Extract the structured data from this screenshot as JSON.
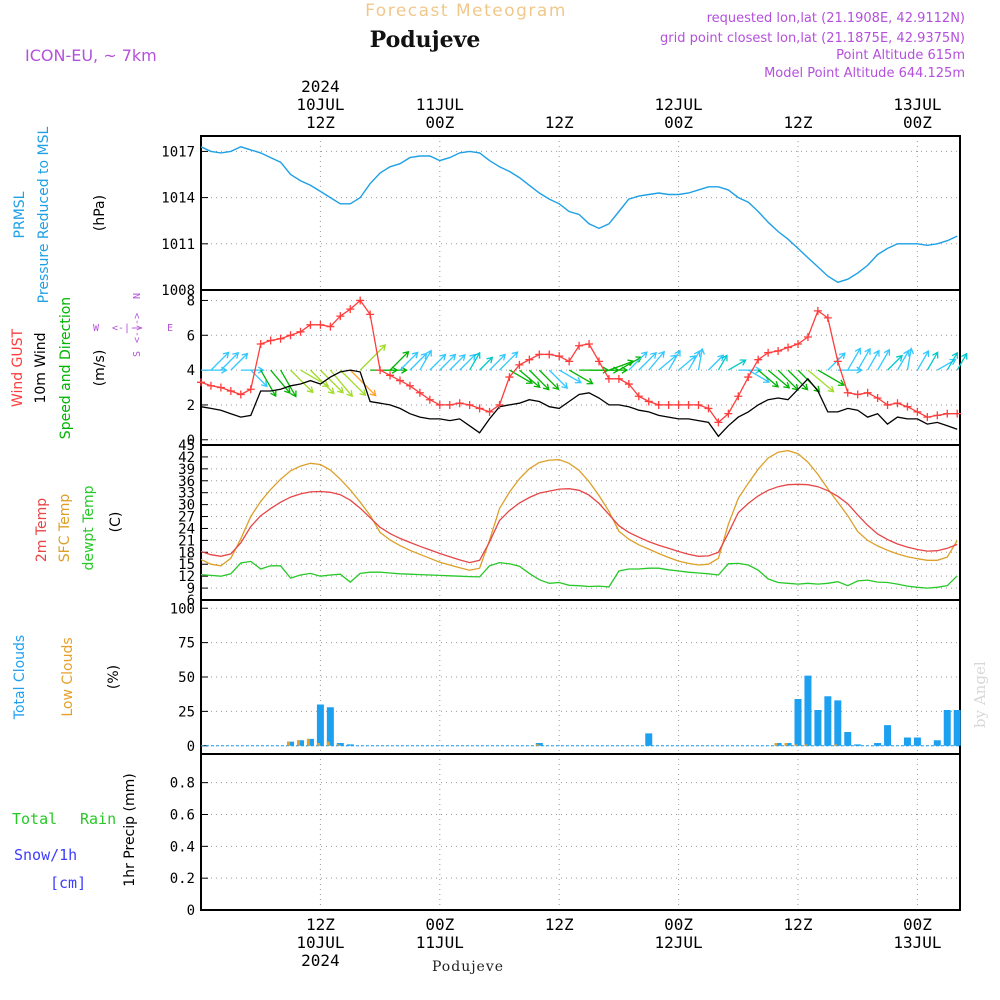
{
  "header": {
    "product_title": "Forecast Meteogram",
    "location": "Podujeve",
    "model": "ICON-EU, ~ 7km",
    "requested": "requested lon,lat (21.1908E, 42.9112N)",
    "grid_point": "grid point closest lon,lat (21.1875E, 42.9375N)",
    "point_altitude": "Point Altitude 615m",
    "model_altitude": "Model Point Altitude 644.125m"
  },
  "footer": {
    "location": "Podujeve",
    "credit": "by Angel"
  },
  "top_time_labels": [
    {
      "hour": 12,
      "lines": [
        "2024",
        "10JUL",
        "12Z"
      ]
    },
    {
      "hour": 24,
      "lines": [
        "11JUL",
        "00Z"
      ]
    },
    {
      "hour": 36,
      "lines": [
        "12Z"
      ]
    },
    {
      "hour": 48,
      "lines": [
        "12JUL",
        "00Z"
      ]
    },
    {
      "hour": 60,
      "lines": [
        "12Z"
      ]
    },
    {
      "hour": 72,
      "lines": [
        "13JUL",
        "00Z"
      ]
    }
  ],
  "bottom_time_labels": [
    {
      "hour": 12,
      "lines": [
        "12Z",
        "10JUL",
        "2024"
      ]
    },
    {
      "hour": 24,
      "lines": [
        "00Z",
        "11JUL"
      ]
    },
    {
      "hour": 36,
      "lines": [
        "12Z"
      ]
    },
    {
      "hour": 48,
      "lines": [
        "00Z",
        "12JUL"
      ]
    },
    {
      "hour": 60,
      "lines": [
        "12Z"
      ]
    },
    {
      "hour": 72,
      "lines": [
        "00Z",
        "13JUL"
      ]
    }
  ],
  "colors": {
    "pressure": "#1ea0e6",
    "gust": "#ff3c3c",
    "wind": "#000000",
    "wind_dir_label": "#00b400",
    "compass": "#b450dc",
    "temp2m": "#e64646",
    "sfc_temp": "#dca028",
    "dewpoint": "#28c828",
    "total_clouds": "#1ea0f0",
    "low_clouds": "#e6a028",
    "rain": "#28c828",
    "snow": "#3c3cff",
    "header_purple": "#b450dc",
    "header_title": "#f0c88c"
  },
  "chart_data": [
    {
      "type": "line",
      "panel": "pressure",
      "axis_labels": [
        "PRMSL",
        "Pressure Reduced to MSL"
      ],
      "unit": "(hPa)",
      "ylim": [
        1008,
        1018
      ],
      "yticks": [
        1008,
        1011,
        1014,
        1017
      ],
      "x": [
        0,
        1,
        2,
        3,
        4,
        5,
        6,
        7,
        8,
        9,
        10,
        11,
        12,
        13,
        14,
        15,
        16,
        17,
        18,
        19,
        20,
        21,
        22,
        23,
        24,
        25,
        26,
        27,
        28,
        29,
        30,
        31,
        32,
        33,
        34,
        35,
        36,
        37,
        38,
        39,
        40,
        41,
        42,
        43,
        44,
        45,
        46,
        47,
        48,
        49,
        50,
        51,
        52,
        53,
        54,
        55,
        56,
        57,
        58,
        59,
        60,
        61,
        62,
        63,
        64,
        65,
        66,
        67,
        68,
        69,
        70,
        71,
        72,
        73,
        74,
        75,
        76
      ],
      "series": [
        {
          "values": [
            1017.3,
            1017.0,
            1016.9,
            1017.0,
            1017.3,
            1017.1,
            1016.9,
            1016.6,
            1016.3,
            1015.5,
            1015.1,
            1014.8,
            1014.4,
            1014.0,
            1013.6,
            1013.6,
            1014.0,
            1014.9,
            1015.6,
            1016.0,
            1016.2,
            1016.6,
            1016.7,
            1016.7,
            1016.4,
            1016.6,
            1016.9,
            1017.0,
            1016.9,
            1016.4,
            1016.0,
            1015.7,
            1015.3,
            1014.8,
            1014.3,
            1013.9,
            1013.6,
            1013.1,
            1012.9,
            1012.3,
            1012.0,
            1012.3,
            1013.1,
            1013.9,
            1014.1,
            1014.2,
            1014.3,
            1014.2,
            1014.2,
            1014.3,
            1014.5,
            1014.7,
            1014.7,
            1014.5,
            1014.0,
            1013.7,
            1013.1,
            1012.4,
            1011.8,
            1011.3,
            1010.7,
            1010.1,
            1009.5,
            1008.9,
            1008.5,
            1008.7,
            1009.1,
            1009.6,
            1010.3,
            1010.7,
            1011.0,
            1011.0,
            1011.0,
            1010.9,
            1011.0,
            1011.2,
            1011.5
          ]
        }
      ]
    },
    {
      "type": "line",
      "panel": "wind",
      "axis_labels": [
        "Wind GUST",
        "10m Wind",
        "Speed and Direction"
      ],
      "unit": "(m/s)",
      "compass": {
        "w": "W",
        "e": "E",
        "n": "N",
        "s": "S"
      },
      "ylim": [
        -0.3,
        8.6
      ],
      "yticks": [
        0,
        2,
        4,
        6,
        8
      ],
      "x": [
        0,
        1,
        2,
        3,
        4,
        5,
        6,
        7,
        8,
        9,
        10,
        11,
        12,
        13,
        14,
        15,
        16,
        17,
        18,
        19,
        20,
        21,
        22,
        23,
        24,
        25,
        26,
        27,
        28,
        29,
        30,
        31,
        32,
        33,
        34,
        35,
        36,
        37,
        38,
        39,
        40,
        41,
        42,
        43,
        44,
        45,
        46,
        47,
        48,
        49,
        50,
        51,
        52,
        53,
        54,
        55,
        56,
        57,
        58,
        59,
        60,
        61,
        62,
        63,
        64,
        65,
        66,
        67,
        68,
        69,
        70,
        71,
        72,
        73,
        74,
        75,
        76
      ],
      "series": [
        {
          "name": "Wind GUST",
          "values": [
            3.3,
            3.1,
            3.0,
            2.8,
            2.6,
            2.9,
            5.5,
            5.7,
            5.8,
            6.0,
            6.2,
            6.6,
            6.6,
            6.5,
            7.1,
            7.5,
            8.0,
            7.2,
            4.0,
            3.7,
            3.4,
            3.1,
            2.7,
            2.3,
            2.0,
            2.0,
            2.1,
            2.0,
            1.8,
            1.6,
            2.0,
            3.6,
            4.3,
            4.6,
            4.9,
            4.9,
            4.8,
            4.5,
            5.4,
            5.5,
            4.5,
            3.5,
            3.5,
            3.2,
            2.5,
            2.2,
            2.0,
            2.0,
            2.0,
            2.0,
            2.0,
            1.8,
            1.0,
            1.5,
            2.5,
            3.6,
            4.6,
            5.0,
            5.1,
            5.3,
            5.5,
            5.9,
            7.4,
            7.0,
            4.5,
            2.7,
            2.6,
            2.7,
            2.4,
            2.0,
            2.1,
            1.9,
            1.6,
            1.3,
            1.4,
            1.5,
            1.5
          ]
        },
        {
          "name": "10m Wind",
          "values": [
            1.9,
            1.8,
            1.7,
            1.5,
            1.3,
            1.4,
            2.8,
            2.8,
            2.9,
            3.1,
            3.2,
            3.4,
            3.2,
            3.6,
            3.9,
            4.0,
            3.9,
            2.2,
            2.1,
            2.0,
            1.8,
            1.5,
            1.3,
            1.2,
            1.2,
            1.1,
            1.2,
            0.8,
            0.4,
            1.2,
            1.9,
            2.0,
            2.1,
            2.3,
            2.2,
            1.9,
            1.8,
            2.2,
            2.6,
            2.7,
            2.4,
            2.0,
            2.0,
            1.9,
            1.7,
            1.6,
            1.4,
            1.3,
            1.2,
            1.2,
            1.1,
            1.0,
            0.2,
            0.8,
            1.3,
            1.6,
            2.0,
            2.3,
            2.4,
            2.3,
            2.9,
            3.5,
            2.8,
            1.6,
            1.6,
            1.8,
            1.7,
            1.3,
            1.5,
            0.9,
            1.3,
            1.2,
            1.2,
            0.9,
            1.0,
            0.8,
            0.6
          ]
        }
      ],
      "barb_dir_deg": [
        0,
        315,
        315,
        315,
        0,
        45,
        60,
        50,
        60,
        45,
        30,
        45,
        45,
        50,
        45,
        45,
        315,
        0,
        0,
        315,
        315,
        315,
        300,
        315,
        315,
        315,
        315,
        300,
        315,
        315,
        315,
        30,
        40,
        45,
        45,
        45,
        30,
        30,
        0,
        0,
        0,
        340,
        330,
        315,
        315,
        310,
        320,
        300,
        320,
        300,
        280,
        315,
        300,
        330,
        0,
        30,
        40,
        40,
        45,
        45,
        45,
        40,
        30,
        315,
        0,
        300,
        300,
        300,
        300,
        315,
        300,
        280,
        300,
        300,
        330,
        300,
        300
      ]
    },
    {
      "type": "line",
      "panel": "temperature",
      "axis_labels": [
        "2m Temp",
        "SFC Temp",
        "dewpt Temp"
      ],
      "unit": "(C)",
      "ylim": [
        6,
        45
      ],
      "yticks": [
        6,
        9,
        12,
        15,
        18,
        21,
        24,
        27,
        30,
        33,
        36,
        39,
        42,
        45
      ],
      "x": [
        0,
        1,
        2,
        3,
        4,
        5,
        6,
        7,
        8,
        9,
        10,
        11,
        12,
        13,
        14,
        15,
        16,
        17,
        18,
        19,
        20,
        21,
        22,
        23,
        24,
        25,
        26,
        27,
        28,
        29,
        30,
        31,
        32,
        33,
        34,
        35,
        36,
        37,
        38,
        39,
        40,
        41,
        42,
        43,
        44,
        45,
        46,
        47,
        48,
        49,
        50,
        51,
        52,
        53,
        54,
        55,
        56,
        57,
        58,
        59,
        60,
        61,
        62,
        63,
        64,
        65,
        66,
        67,
        68,
        69,
        70,
        71,
        72,
        73,
        74,
        75,
        76
      ],
      "series": [
        {
          "name": "2m Temp",
          "values": [
            18.2,
            17.4,
            17.0,
            17.6,
            20.4,
            24.5,
            27.2,
            29.0,
            30.6,
            31.9,
            32.7,
            33.2,
            33.3,
            33.1,
            32.5,
            31.1,
            29.1,
            26.7,
            24.3,
            22.7,
            21.5,
            20.5,
            19.5,
            18.6,
            17.7,
            16.9,
            16.1,
            15.4,
            16.0,
            20.6,
            26.0,
            28.5,
            30.4,
            31.8,
            32.9,
            33.4,
            33.9,
            34.0,
            33.6,
            32.4,
            30.3,
            27.5,
            24.7,
            23.0,
            21.8,
            20.7,
            19.8,
            19.0,
            18.2,
            17.5,
            17.0,
            17.1,
            18.0,
            22.8,
            28.0,
            30.3,
            32.2,
            33.6,
            34.5,
            35.0,
            35.1,
            35.0,
            34.5,
            33.5,
            32.1,
            30.2,
            27.4,
            24.8,
            22.6,
            21.2,
            20.1,
            19.3,
            18.7,
            18.3,
            18.4,
            19.0,
            20.0
          ]
        },
        {
          "name": "SFC Temp",
          "values": [
            16.2,
            15.0,
            14.6,
            16.5,
            21.4,
            27.0,
            30.8,
            33.8,
            36.4,
            38.5,
            39.7,
            40.4,
            40.1,
            38.7,
            36.4,
            33.7,
            30.6,
            27.3,
            23.0,
            21.1,
            19.7,
            18.5,
            17.5,
            16.5,
            15.5,
            14.8,
            14.1,
            13.5,
            14.0,
            21.0,
            29.0,
            33.1,
            36.5,
            39.0,
            40.6,
            41.2,
            41.3,
            40.4,
            38.6,
            35.8,
            32.3,
            28.3,
            23.3,
            21.3,
            19.9,
            18.8,
            17.7,
            16.7,
            15.8,
            15.2,
            14.8,
            15.0,
            16.5,
            25.0,
            31.6,
            35.4,
            38.9,
            41.7,
            43.2,
            43.6,
            42.8,
            40.7,
            37.6,
            34.0,
            30.6,
            27.2,
            23.2,
            21.0,
            19.6,
            18.5,
            17.6,
            16.9,
            16.4,
            16.0,
            16.0,
            16.8,
            21.0
          ]
        },
        {
          "name": "dewpt Temp",
          "values": [
            12.4,
            12.2,
            12.0,
            12.6,
            15.3,
            15.7,
            13.8,
            14.6,
            14.6,
            11.5,
            12.3,
            12.7,
            12.0,
            12.3,
            12.5,
            10.5,
            12.7,
            13.0,
            13.0,
            12.8,
            12.6,
            12.5,
            12.4,
            12.3,
            12.2,
            12.1,
            12.0,
            11.9,
            11.8,
            14.6,
            15.4,
            15.1,
            14.5,
            12.7,
            11.1,
            10.2,
            10.4,
            9.7,
            9.6,
            9.4,
            9.5,
            9.3,
            13.3,
            13.8,
            13.8,
            14.0,
            14.0,
            13.6,
            13.3,
            13.0,
            12.8,
            12.6,
            12.3,
            15.1,
            15.2,
            14.8,
            13.5,
            11.3,
            10.4,
            10.2,
            10.0,
            10.2,
            10.0,
            10.2,
            10.6,
            9.6,
            10.8,
            11.0,
            10.5,
            10.4,
            10.0,
            9.5,
            9.2,
            9.0,
            9.2,
            9.6,
            12.1
          ]
        }
      ]
    },
    {
      "type": "bar",
      "panel": "clouds",
      "axis_labels": [
        "Total Clouds",
        "Low Clouds"
      ],
      "unit": "(%)",
      "ylim": [
        -6,
        106
      ],
      "yticks": [
        0,
        25,
        50,
        75,
        100
      ],
      "x": [
        9,
        10,
        11,
        12,
        13,
        14,
        15,
        34,
        45,
        58,
        59,
        60,
        61,
        62,
        63,
        64,
        65,
        66,
        67,
        68,
        69,
        70,
        71,
        72,
        73,
        74,
        75,
        76
      ],
      "series": [
        {
          "name": "Total Clouds",
          "values": [
            3,
            4,
            5,
            30,
            28,
            2,
            1,
            2,
            9,
            2,
            2,
            34,
            51,
            26,
            36,
            33,
            10,
            1,
            0,
            2,
            15,
            0,
            6,
            6,
            0,
            4,
            26,
            26
          ]
        },
        {
          "name": "Low Clouds",
          "values": [
            3,
            4,
            5,
            2,
            3,
            1,
            0,
            1,
            0,
            2,
            2,
            1,
            1,
            0,
            0,
            1,
            0,
            0,
            0,
            0,
            0,
            0,
            0,
            0,
            0,
            0,
            0,
            0
          ]
        }
      ]
    },
    {
      "type": "bar",
      "panel": "precipitation",
      "axis_labels": [
        "Total",
        "Rain",
        "Snow/1h",
        "[cm]"
      ],
      "unit": "1hr Precip (mm)",
      "ylim": [
        0,
        0.98
      ],
      "yticks": [
        0,
        0.2,
        0.4,
        0.6,
        0.8
      ],
      "x": [],
      "series": [
        {
          "name": "Rain",
          "values": []
        }
      ]
    }
  ]
}
